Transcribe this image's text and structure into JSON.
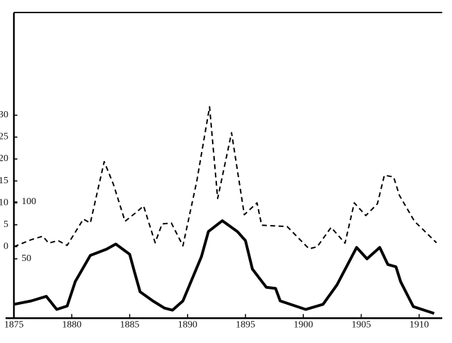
{
  "chart_data": {
    "type": "line",
    "xlim": [
      1875,
      1912
    ],
    "xticks": [
      1875,
      1880,
      1885,
      1890,
      1895,
      1900,
      1905,
      1910
    ],
    "ylim": [
      -16,
      53
    ],
    "yticks": [
      0,
      5,
      10,
      15,
      20,
      25,
      30
    ],
    "y2lim": [
      -1,
      265
    ],
    "y2ticks": [
      50,
      100
    ],
    "series": [
      {
        "color": "#000000",
        "dash": true,
        "x": [
          1875,
          1876.5,
          1877.5,
          1878,
          1878.8,
          1879.6,
          1881,
          1881.6,
          1882.8,
          1883.6,
          1884.6,
          1885.6,
          1886.2,
          1887.2,
          1887.8,
          1888.6,
          1889.6,
          1890.8,
          1891.9,
          1892.6,
          1893.8,
          1894.9,
          1896,
          1896.4,
          1898.6,
          1900.5,
          1901.2,
          1902.4,
          1903.6,
          1904.4,
          1905.4,
          1906.4,
          1907,
          1907.8,
          1908.3,
          1909.6,
          1911.5
        ],
        "values": [
          0,
          1.6,
          2.4,
          0.8,
          1.4,
          0.3,
          6.3,
          5.4,
          19.4,
          14.2,
          5.8,
          7.9,
          9.3,
          0.9,
          5.2,
          5.4,
          0.2,
          15,
          31.9,
          11,
          26,
          7.3,
          10,
          4.9,
          4.6,
          -0.5,
          0,
          4.4,
          0.8,
          10,
          7.1,
          9.8,
          16.3,
          15.9,
          11.7,
          5.8,
          0.9
        ]
      },
      {
        "color": "#000000",
        "dash": false,
        "axis": "y2",
        "x": [
          1875,
          1876.5,
          1877.8,
          1878.7,
          1879.6,
          1880.3,
          1881.6,
          1883,
          1883.8,
          1885,
          1885.4,
          1885.9,
          1887,
          1888,
          1888.7,
          1889.6,
          1891.2,
          1891.8,
          1893,
          1894.3,
          1895,
          1895.6,
          1896.8,
          1897.6,
          1898,
          1900.2,
          1901.7,
          1902.9,
          1904.6,
          1905.5,
          1906.6,
          1907.3,
          1908,
          1908.4,
          1909.5,
          1910.4,
          1911.3
        ],
        "values": [
          10,
          13,
          17,
          5.5,
          8.5,
          30,
          53,
          58.5,
          63,
          54,
          39,
          21,
          13,
          6.7,
          4.9,
          13,
          52,
          74,
          83.5,
          74,
          66,
          41,
          25,
          24,
          13,
          5.5,
          10,
          27,
          60,
          50,
          60,
          45,
          43,
          30,
          8,
          5,
          2
        ]
      }
    ]
  }
}
